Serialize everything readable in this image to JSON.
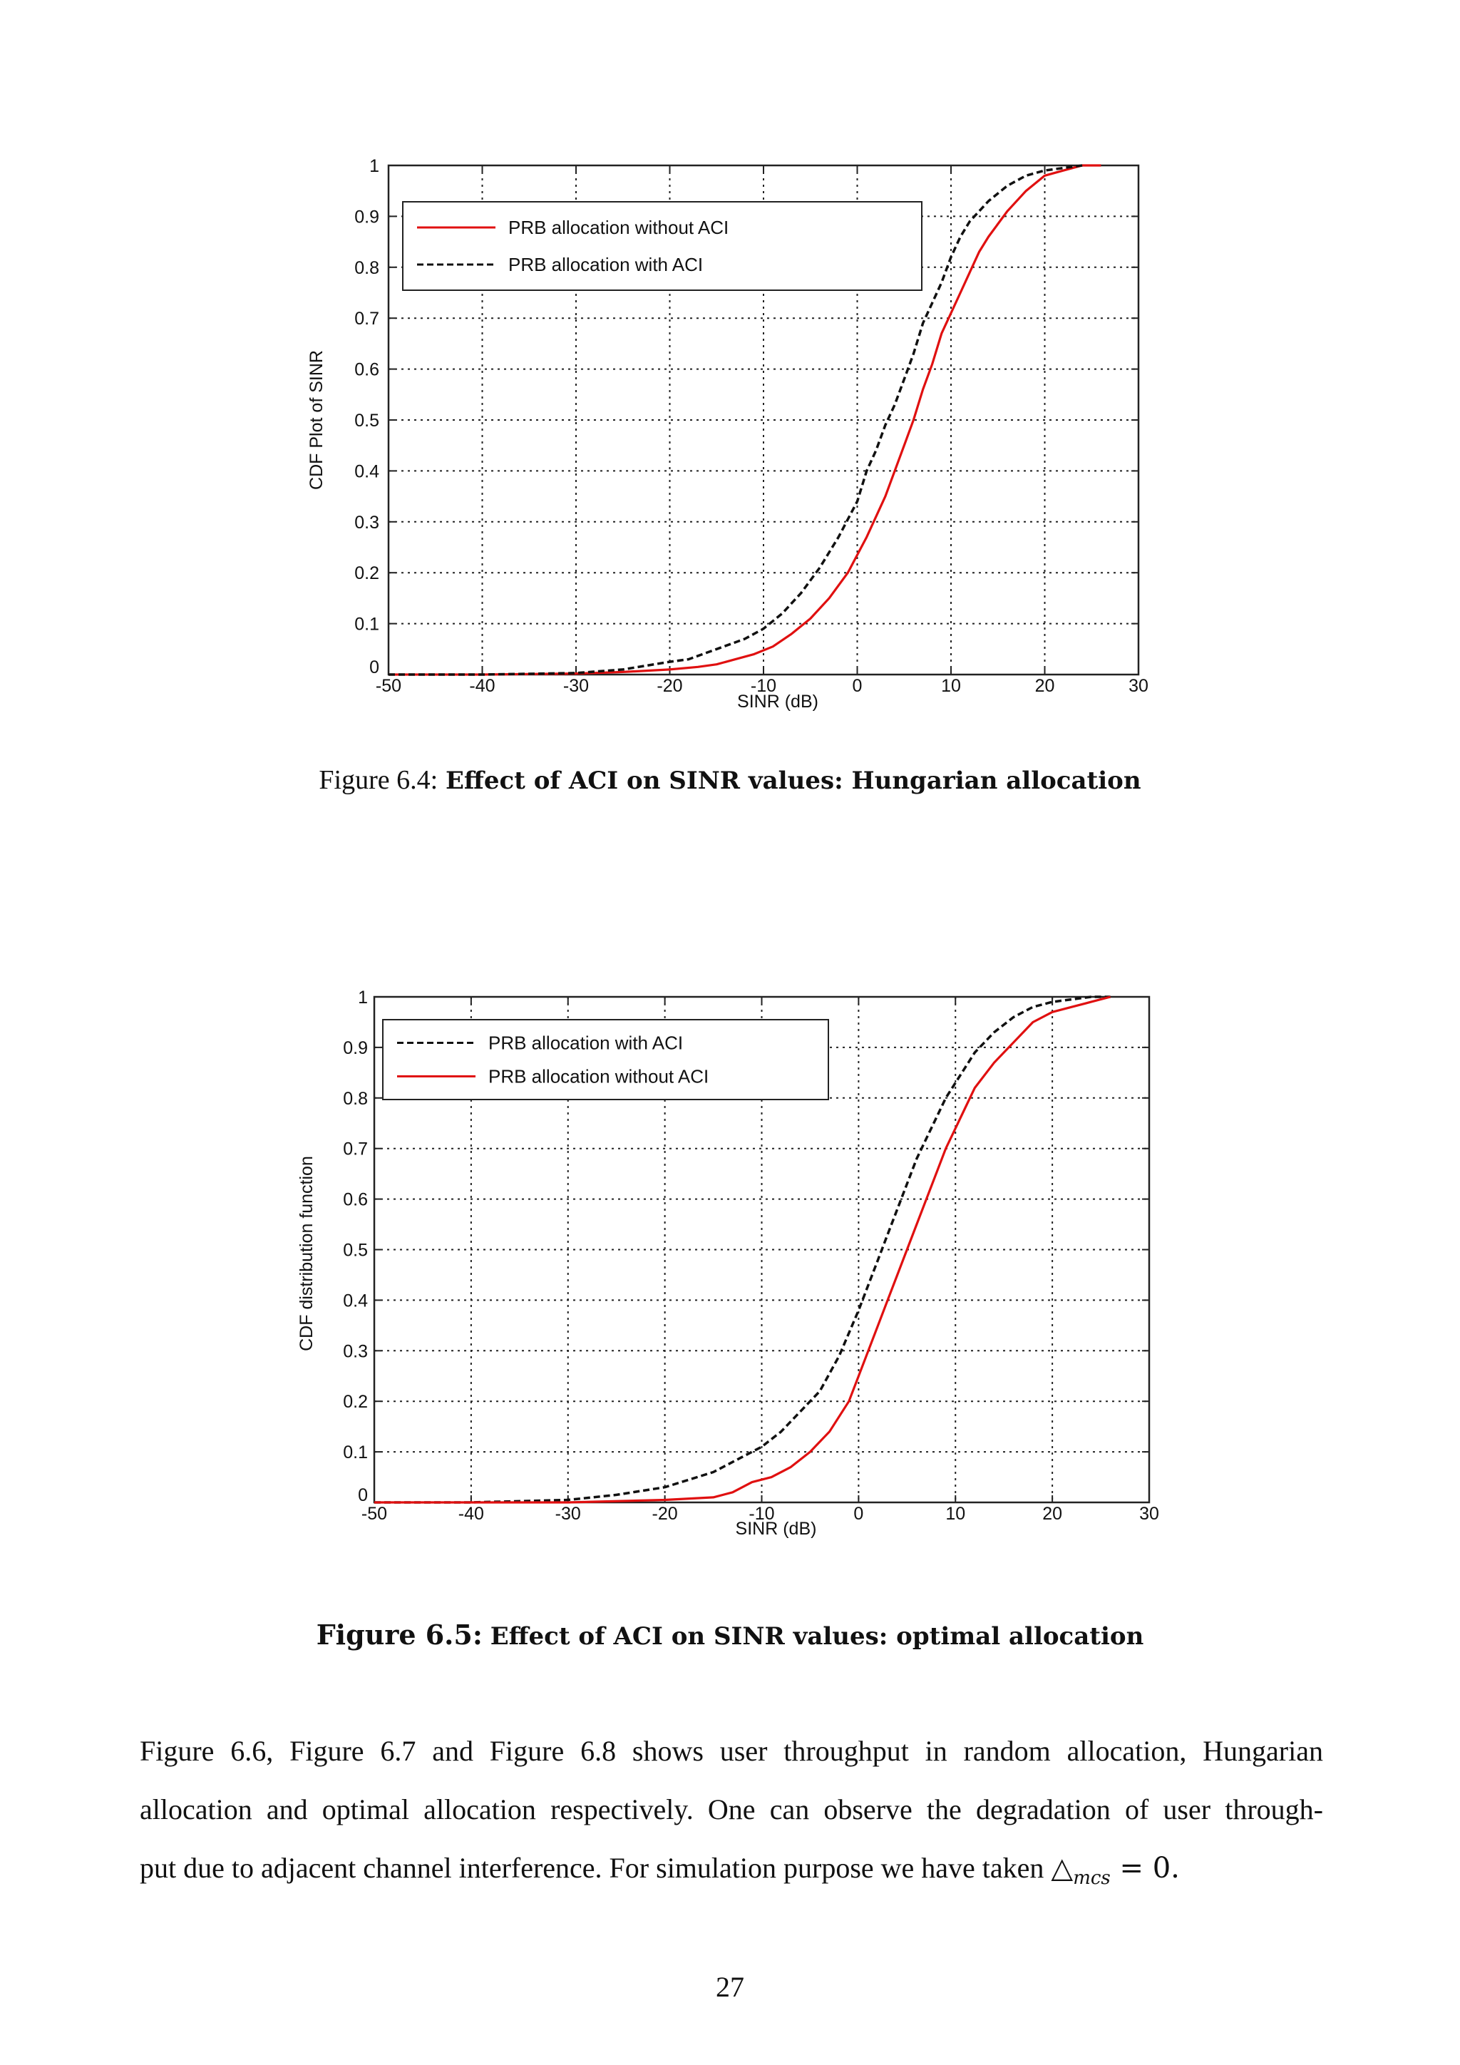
{
  "figures": [
    {
      "caption_label": "Figure 6.4:",
      "caption_text": "Effect of ACI on SINR values: Hungarian allocation",
      "chart_data": {
        "type": "line",
        "xlabel": "SINR (dB)",
        "ylabel": "CDF Plot of SINR",
        "xlim": [
          -50,
          30
        ],
        "ylim": [
          0,
          1
        ],
        "xticks": [
          "-50",
          "-40",
          "-30",
          "-20",
          "-10",
          "0",
          "10",
          "20",
          "30"
        ],
        "yticks": [
          "0",
          "0.1",
          "0.2",
          "0.3",
          "0.4",
          "0.5",
          "0.6",
          "0.7",
          "0.8",
          "0.9",
          "1"
        ],
        "grid": true,
        "legend_position": "top-left",
        "series": [
          {
            "name": "PRB allocation without ACI",
            "color": "#e01010",
            "style": "solid",
            "x": [
              -50,
              -40,
              -30,
              -25,
              -20,
              -17,
              -15,
              -13,
              -11,
              -9,
              -7,
              -5,
              -3,
              -1,
              1,
              3,
              5,
              6,
              7,
              8,
              9,
              10,
              11,
              12,
              13,
              14,
              16,
              18,
              20,
              22,
              24,
              26
            ],
            "y": [
              0,
              0,
              0.002,
              0.005,
              0.01,
              0.015,
              0.02,
              0.03,
              0.04,
              0.055,
              0.08,
              0.11,
              0.15,
              0.2,
              0.27,
              0.35,
              0.45,
              0.5,
              0.56,
              0.61,
              0.67,
              0.71,
              0.75,
              0.79,
              0.83,
              0.86,
              0.91,
              0.95,
              0.98,
              0.99,
              1,
              1
            ]
          },
          {
            "name": "PRB allocation with ACI",
            "color": "#111111",
            "style": "dashed",
            "x": [
              -50,
              -40,
              -30,
              -25,
              -20,
              -18,
              -15,
              -12,
              -10,
              -8,
              -6,
              -4,
              -2,
              0,
              1,
              2,
              3,
              4,
              5,
              6,
              7,
              8,
              9,
              10,
              11,
              12,
              14,
              16,
              18,
              20,
              24
            ],
            "y": [
              0,
              0,
              0.003,
              0.01,
              0.025,
              0.03,
              0.05,
              0.07,
              0.09,
              0.12,
              0.16,
              0.21,
              0.27,
              0.34,
              0.4,
              0.44,
              0.49,
              0.53,
              0.58,
              0.63,
              0.69,
              0.73,
              0.77,
              0.82,
              0.86,
              0.89,
              0.93,
              0.96,
              0.98,
              0.99,
              1
            ]
          }
        ]
      }
    },
    {
      "caption_label": "Figure 6.5:",
      "caption_text": "Effect of ACI on SINR values: optimal allocation",
      "chart_data": {
        "type": "line",
        "xlabel": "SINR (dB)",
        "ylabel": "CDF distribution function",
        "xlim": [
          -50,
          30
        ],
        "ylim": [
          0,
          1
        ],
        "xticks": [
          "-50",
          "-40",
          "-30",
          "-20",
          "-10",
          "0",
          "10",
          "20",
          "30"
        ],
        "yticks": [
          "0",
          "0.1",
          "0.2",
          "0.3",
          "0.4",
          "0.5",
          "0.6",
          "0.7",
          "0.8",
          "0.9",
          "1"
        ],
        "grid": true,
        "legend_position": "top-left",
        "series": [
          {
            "name": "PRB allocation with ACI",
            "color": "#111111",
            "style": "dashed",
            "x": [
              -50,
              -40,
              -30,
              -25,
              -20,
              -15,
              -12,
              -10,
              -8,
              -6,
              -4,
              -2,
              0,
              1,
              2,
              3,
              4,
              5,
              6,
              7,
              8,
              9,
              10,
              11,
              12,
              14,
              16,
              18,
              20,
              24,
              26
            ],
            "y": [
              0,
              0,
              0.005,
              0.015,
              0.03,
              0.06,
              0.09,
              0.11,
              0.14,
              0.18,
              0.22,
              0.29,
              0.38,
              0.43,
              0.48,
              0.53,
              0.58,
              0.63,
              0.68,
              0.72,
              0.76,
              0.8,
              0.83,
              0.86,
              0.89,
              0.93,
              0.96,
              0.98,
              0.99,
              1,
              1
            ]
          },
          {
            "name": "PRB allocation without ACI",
            "color": "#e01010",
            "style": "solid",
            "x": [
              -50,
              -40,
              -30,
              -20,
              -15,
              -13,
              -11,
              -9,
              -7,
              -5,
              -3,
              -1,
              0,
              1,
              2,
              3,
              4,
              5,
              6,
              7,
              8,
              9,
              10,
              11,
              12,
              14,
              16,
              18,
              20,
              22,
              24,
              26
            ],
            "y": [
              0,
              0,
              0,
              0.005,
              0.01,
              0.02,
              0.04,
              0.05,
              0.07,
              0.1,
              0.14,
              0.2,
              0.25,
              0.3,
              0.35,
              0.4,
              0.45,
              0.5,
              0.55,
              0.6,
              0.65,
              0.7,
              0.74,
              0.78,
              0.82,
              0.87,
              0.91,
              0.95,
              0.97,
              0.98,
              0.99,
              1
            ]
          }
        ]
      }
    }
  ],
  "paragraph": {
    "line1": "Figure 6.6, Figure 6.7 and Figure 6.8 shows user throughput in random allocation, Hungarian",
    "line2": "allocation and optimal allocation respectively.  One can observe the degradation of user through-",
    "line3_text": "put due to adjacent channel interference.  For simulation purpose we have taken ",
    "line3_math_symbol": "△",
    "line3_math_sub": "mcs",
    "line3_math_rest": " = 0."
  },
  "page_number": "27"
}
